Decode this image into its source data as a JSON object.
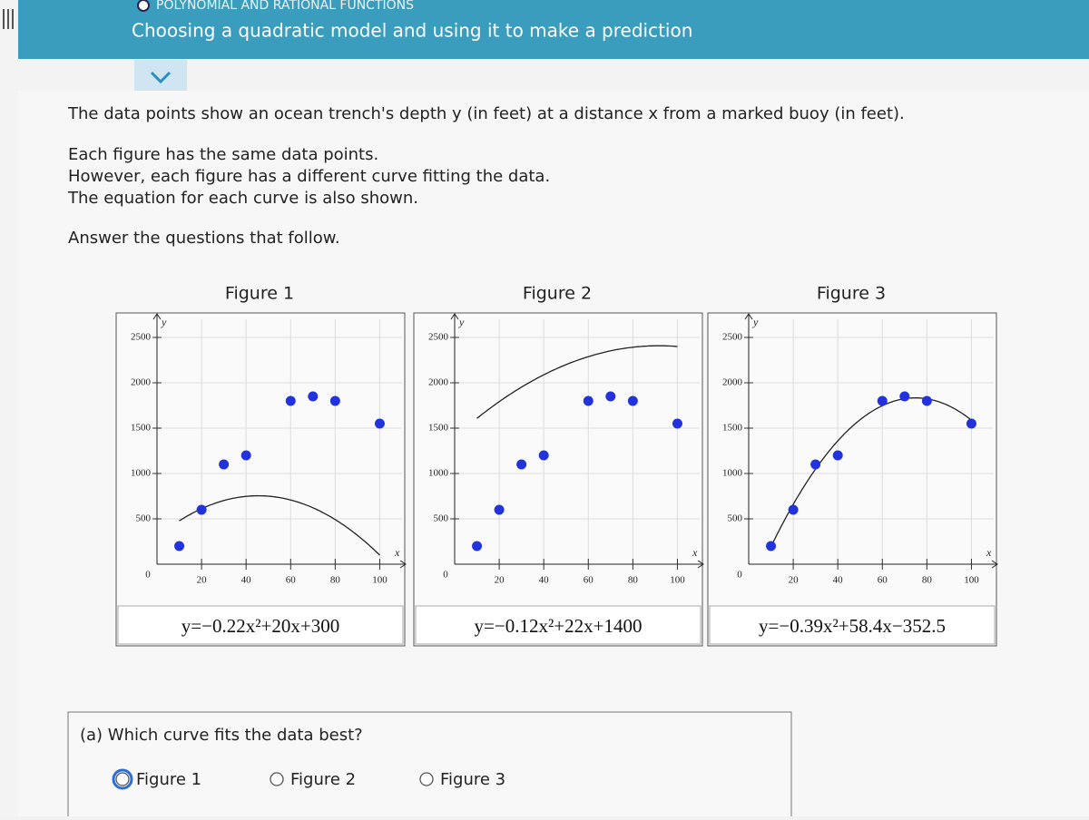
{
  "header": {
    "category": "POLYNOMIAL AND RATIONAL FUNCTIONS",
    "title": "Choosing a quadratic model and using it to make a prediction"
  },
  "intro": {
    "description": "The data points show an ocean trench's depth y (in feet) at a distance x from a marked buoy (in feet).",
    "lines": [
      "Each figure has the same data points.",
      "However, each figure has a different curve fitting the data.",
      "The equation for each curve is also shown."
    ],
    "prompt": "Answer the questions that follow."
  },
  "chart_data": [
    {
      "type": "scatter",
      "title": "Figure 1",
      "x_label": "x",
      "y_label": "y",
      "x": [
        10,
        20,
        30,
        40,
        60,
        70,
        80,
        100
      ],
      "values": [
        200,
        600,
        1100,
        1200,
        1800,
        1850,
        1800,
        1550
      ],
      "color": "#2233dd",
      "xlim": [
        0,
        110
      ],
      "ylim": [
        0,
        2700
      ],
      "xticks": [
        0,
        20,
        40,
        60,
        80,
        100
      ],
      "yticks": [
        500,
        1000,
        1500,
        2000,
        2500
      ],
      "grid": true,
      "curve": {
        "equation": "y=−0.22x²+20x+300",
        "coefficients": [
          -0.22,
          20,
          300
        ]
      }
    },
    {
      "type": "scatter",
      "title": "Figure 2",
      "x_label": "x",
      "y_label": "y",
      "x": [
        10,
        20,
        30,
        40,
        60,
        70,
        80,
        100
      ],
      "values": [
        200,
        600,
        1100,
        1200,
        1800,
        1850,
        1800,
        1550
      ],
      "color": "#2233dd",
      "xlim": [
        0,
        110
      ],
      "ylim": [
        0,
        2700
      ],
      "xticks": [
        0,
        20,
        40,
        60,
        80,
        100
      ],
      "yticks": [
        500,
        1000,
        1500,
        2000,
        2500
      ],
      "grid": true,
      "curve": {
        "equation": "y=−0.12x²+22x+1400",
        "coefficients": [
          -0.12,
          22,
          1400
        ]
      }
    },
    {
      "type": "scatter",
      "title": "Figure 3",
      "x_label": "x",
      "y_label": "y",
      "x": [
        10,
        20,
        30,
        40,
        60,
        70,
        80,
        100
      ],
      "values": [
        200,
        600,
        1100,
        1200,
        1800,
        1850,
        1800,
        1550
      ],
      "color": "#2233dd",
      "xlim": [
        0,
        110
      ],
      "ylim": [
        0,
        2700
      ],
      "xticks": [
        0,
        20,
        40,
        60,
        80,
        100
      ],
      "yticks": [
        500,
        1000,
        1500,
        2000,
        2500
      ],
      "grid": true,
      "curve": {
        "equation": "y=−0.39x²+58.4x−352.5",
        "coefficients": [
          -0.39,
          58.4,
          -352.5
        ]
      }
    }
  ],
  "question": {
    "text": "(a) Which curve fits the data best?",
    "options": [
      "Figure 1",
      "Figure 2",
      "Figure 3"
    ]
  }
}
